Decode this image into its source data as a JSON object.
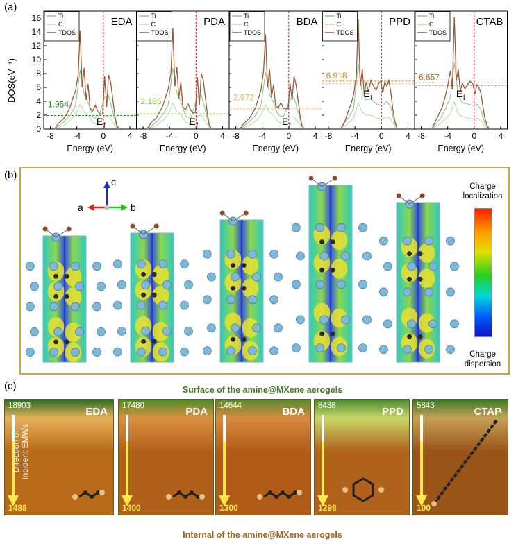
{
  "panel_labels": {
    "a": "(a)",
    "b": "(b)",
    "c": "(c)"
  },
  "colors": {
    "ti": "#8cc896",
    "c": "#b8dca8",
    "tdos": "#9a5c38",
    "fermi": "#e02020"
  },
  "chart_data": [
    {
      "type": "line",
      "title": "EDA",
      "xlabel": "Energy (eV)",
      "ylabel": "DOS(eV⁻¹)",
      "xlim": [
        -9,
        5
      ],
      "ylim": [
        0,
        17
      ],
      "xticks": [
        -8,
        -4,
        0,
        4
      ],
      "yticks": [
        0,
        2,
        4,
        6,
        8,
        10,
        12,
        14,
        16
      ],
      "legend": [
        "Ti",
        "C",
        "TDOS"
      ],
      "legend_position": "top-left",
      "fermi_label": "E",
      "fermi_sub": "f",
      "annotation": "1.954",
      "annotation_value": 1.954,
      "annotation_color": "#2c8a2c",
      "series": [
        {
          "name": "TDOS",
          "x": [
            -7.4,
            -6.8,
            -6.0,
            -5.4,
            -5.0,
            -4.6,
            -4.2,
            -3.8,
            -3.5,
            -3.2,
            -2.9,
            -2.6,
            -2.3,
            -2.0,
            -1.6,
            -1.2,
            -0.8,
            -0.4,
            -0.1,
            0.2,
            0.5,
            0.8,
            1.1,
            1.4,
            1.7,
            2.0,
            2.4
          ],
          "y": [
            0,
            0.8,
            1.5,
            2.4,
            3.2,
            4.5,
            5.5,
            7.8,
            14.2,
            6.0,
            8.8,
            4.2,
            6.5,
            3.0,
            2.6,
            3.4,
            2.5,
            2.1,
            2.2,
            7.6,
            3.2,
            7.8,
            6.8,
            4.5,
            2.2,
            0.6,
            0
          ]
        },
        {
          "name": "Ti",
          "x": [
            -7.4,
            -6.0,
            -5.0,
            -4.2,
            -3.5,
            -2.9,
            -2.3,
            -1.6,
            -0.8,
            0.2,
            0.8,
            1.4,
            2.0,
            2.4
          ],
          "y": [
            0,
            1.0,
            2.0,
            3.4,
            8.5,
            5.0,
            3.8,
            1.8,
            1.4,
            4.6,
            4.8,
            2.6,
            0.4,
            0
          ]
        },
        {
          "name": "C",
          "x": [
            -7.4,
            -6.0,
            -5.0,
            -4.2,
            -3.5,
            -2.9,
            -2.3,
            -1.6,
            -0.8,
            0.2,
            0.8,
            1.4,
            2.0,
            2.4
          ],
          "y": [
            0,
            0.5,
            1.2,
            2.0,
            3.6,
            2.4,
            2.0,
            0.9,
            0.6,
            1.8,
            1.9,
            1.0,
            0.2,
            0
          ]
        }
      ]
    },
    {
      "type": "line",
      "title": "PDA",
      "xlabel": "Energy (eV)",
      "xlim": [
        -9,
        5
      ],
      "ylim": [
        0,
        17
      ],
      "xticks": [
        -8,
        -4,
        0,
        4
      ],
      "legend": [
        "Ti",
        "C",
        "TDOS"
      ],
      "legend_position": "top-left",
      "fermi_label": "E",
      "fermi_sub": "f",
      "annotation": "2.185",
      "annotation_value": 2.185,
      "annotation_color": "#7fc840",
      "series": [
        {
          "name": "TDOS",
          "x": [
            -7.4,
            -6.8,
            -6.0,
            -5.4,
            -5.0,
            -4.6,
            -4.2,
            -3.8,
            -3.5,
            -3.2,
            -2.9,
            -2.6,
            -2.3,
            -2.0,
            -1.6,
            -1.2,
            -0.8,
            -0.4,
            -0.1,
            0.2,
            0.5,
            0.8,
            1.1,
            1.4,
            1.7,
            2.0,
            2.4
          ],
          "y": [
            0,
            0.9,
            1.6,
            2.6,
            3.4,
            4.6,
            5.8,
            8.0,
            14.6,
            6.2,
            9.0,
            4.4,
            6.8,
            3.2,
            2.8,
            3.6,
            2.7,
            2.3,
            2.4,
            7.5,
            3.4,
            8.0,
            7.0,
            4.6,
            2.3,
            0.6,
            0
          ]
        },
        {
          "name": "Ti",
          "x": [
            -7.4,
            -6.0,
            -5.0,
            -4.2,
            -3.5,
            -2.9,
            -2.3,
            -1.6,
            -0.8,
            0.2,
            0.8,
            1.4,
            2.0,
            2.4
          ],
          "y": [
            0,
            1.0,
            2.1,
            3.5,
            8.8,
            5.2,
            4.0,
            1.9,
            1.5,
            4.7,
            4.9,
            2.7,
            0.4,
            0
          ]
        },
        {
          "name": "C",
          "x": [
            -7.4,
            -6.0,
            -5.0,
            -4.2,
            -3.5,
            -2.9,
            -2.3,
            -1.6,
            -0.8,
            0.2,
            0.8,
            1.4,
            2.0,
            2.4
          ],
          "y": [
            0,
            0.5,
            1.2,
            2.1,
            3.7,
            2.5,
            2.1,
            1.0,
            0.6,
            1.9,
            2.0,
            1.1,
            0.2,
            0
          ]
        }
      ]
    },
    {
      "type": "line",
      "title": "BDA",
      "xlabel": "Energy (eV)",
      "xlim": [
        -9,
        5
      ],
      "ylim": [
        0,
        17
      ],
      "xticks": [
        -8,
        -4,
        0,
        4
      ],
      "legend": [
        "Ti",
        "C",
        "TDOS"
      ],
      "legend_position": "top-left",
      "fermi_label": "E",
      "fermi_sub": "f",
      "annotation": "2.972",
      "annotation_value": 2.972,
      "annotation_color": "#f0b060",
      "series": [
        {
          "name": "TDOS",
          "x": [
            -7.4,
            -6.8,
            -6.0,
            -5.4,
            -5.0,
            -4.6,
            -4.2,
            -3.8,
            -3.5,
            -3.2,
            -2.9,
            -2.6,
            -2.3,
            -2.0,
            -1.6,
            -1.2,
            -0.8,
            -0.4,
            -0.1,
            0.2,
            0.5,
            0.8,
            1.1,
            1.4,
            1.7,
            2.0,
            2.4
          ],
          "y": [
            0,
            0.8,
            1.5,
            2.4,
            3.1,
            4.4,
            5.6,
            8.4,
            13.6,
            6.0,
            8.6,
            4.6,
            6.4,
            3.4,
            3.0,
            3.8,
            3.0,
            2.9,
            3.0,
            6.6,
            4.2,
            7.6,
            6.4,
            4.2,
            2.0,
            0.5,
            0
          ]
        },
        {
          "name": "Ti",
          "x": [
            -7.4,
            -6.0,
            -5.0,
            -4.2,
            -3.5,
            -2.9,
            -2.3,
            -1.6,
            -0.8,
            0.2,
            0.8,
            1.4,
            2.0,
            2.4
          ],
          "y": [
            0,
            1.0,
            2.0,
            3.4,
            8.2,
            5.0,
            3.8,
            2.0,
            1.8,
            4.2,
            4.6,
            2.5,
            0.4,
            0
          ]
        },
        {
          "name": "C",
          "x": [
            -7.4,
            -6.0,
            -5.0,
            -4.2,
            -3.5,
            -2.9,
            -2.3,
            -1.6,
            -0.8,
            0.2,
            0.8,
            1.4,
            2.0,
            2.4
          ],
          "y": [
            0,
            0.5,
            1.1,
            2.0,
            3.5,
            2.4,
            2.0,
            1.0,
            0.8,
            1.7,
            1.8,
            1.0,
            0.2,
            0
          ]
        }
      ]
    },
    {
      "type": "line",
      "title": "PPD",
      "xlabel": "Energy (eV)",
      "xlim": [
        -9,
        5
      ],
      "ylim": [
        0,
        17
      ],
      "xticks": [
        -8,
        -4,
        0,
        4
      ],
      "legend": [
        "Ti",
        "C",
        "TDOS"
      ],
      "legend_position": "top-left",
      "fermi_label": "E",
      "fermi_sub": "f",
      "annotation": "6.918",
      "annotation_value": 6.918,
      "annotation_color": "#c88a28",
      "series": [
        {
          "name": "TDOS",
          "x": [
            -6.2,
            -5.8,
            -5.4,
            -5.0,
            -4.6,
            -4.2,
            -3.8,
            -3.5,
            -3.2,
            -2.9,
            -2.6,
            -2.3,
            -2.0,
            -1.6,
            -1.2,
            -0.8,
            -0.4,
            -0.1,
            0.2,
            0.5,
            0.8,
            1.1,
            1.4,
            1.7,
            2.0,
            2.4
          ],
          "y": [
            0,
            0.6,
            1.4,
            2.6,
            3.6,
            5.0,
            7.6,
            15.8,
            6.2,
            8.6,
            5.0,
            6.8,
            5.4,
            7.0,
            6.2,
            5.6,
            6.6,
            6.9,
            5.2,
            6.8,
            6.2,
            7.0,
            5.4,
            3.0,
            1.2,
            0
          ]
        },
        {
          "name": "Ti",
          "x": [
            -6.2,
            -5.0,
            -4.2,
            -3.5,
            -2.9,
            -2.3,
            -1.6,
            -0.8,
            0.2,
            0.8,
            1.4,
            2.0,
            2.4
          ],
          "y": [
            0,
            1.6,
            3.0,
            9.4,
            5.2,
            4.2,
            4.4,
            3.6,
            3.4,
            4.0,
            3.2,
            0.8,
            0
          ]
        },
        {
          "name": "C",
          "x": [
            -6.2,
            -5.0,
            -4.2,
            -3.5,
            -2.9,
            -2.3,
            -1.6,
            -0.8,
            0.2,
            0.8,
            1.4,
            2.0,
            2.4
          ],
          "y": [
            0,
            0.8,
            1.6,
            3.8,
            2.4,
            2.0,
            2.0,
            1.6,
            1.5,
            1.8,
            1.4,
            0.4,
            0
          ]
        }
      ]
    },
    {
      "type": "line",
      "title": "CTAB",
      "xlabel": "Energy (eV)",
      "xlim": [
        -9,
        5
      ],
      "ylim": [
        0,
        17
      ],
      "xticks": [
        -8,
        -4,
        0,
        4
      ],
      "legend": [
        "Ti",
        "C",
        "TDOS"
      ],
      "legend_position": "top-left",
      "fermi_label": "E",
      "fermi_sub": "f",
      "annotation": "6.657",
      "annotation_value": 6.657,
      "annotation_color": "#a86a2a",
      "series": [
        {
          "name": "TDOS",
          "x": [
            -6.4,
            -6.0,
            -5.6,
            -5.2,
            -4.8,
            -4.4,
            -4.0,
            -3.6,
            -3.3,
            -3.0,
            -2.7,
            -2.4,
            -2.1,
            -1.8,
            -1.4,
            -1.0,
            -0.6,
            -0.2,
            0.1,
            0.4,
            0.7,
            1.0,
            1.3,
            1.6,
            2.0,
            2.4
          ],
          "y": [
            0,
            0.8,
            1.6,
            2.4,
            3.2,
            4.6,
            6.2,
            8.4,
            5.8,
            16.2,
            7.0,
            8.6,
            5.4,
            6.6,
            5.8,
            6.4,
            6.9,
            6.5,
            5.0,
            6.4,
            6.0,
            5.2,
            3.4,
            1.6,
            0.4,
            0
          ]
        },
        {
          "name": "Ti",
          "x": [
            -6.4,
            -5.2,
            -4.4,
            -3.6,
            -3.0,
            -2.4,
            -1.8,
            -1.0,
            -0.2,
            0.4,
            1.0,
            1.6,
            2.4
          ],
          "y": [
            0,
            1.4,
            2.8,
            4.6,
            9.6,
            4.8,
            3.8,
            3.6,
            3.4,
            3.6,
            2.8,
            0.8,
            0
          ]
        },
        {
          "name": "C",
          "x": [
            -6.4,
            -5.2,
            -4.4,
            -3.6,
            -3.0,
            -2.4,
            -1.8,
            -1.0,
            -0.2,
            0.4,
            1.0,
            1.6,
            2.4
          ],
          "y": [
            0,
            0.7,
            1.4,
            2.2,
            3.9,
            2.2,
            1.8,
            1.6,
            1.5,
            1.6,
            1.2,
            0.4,
            0
          ]
        }
      ]
    }
  ],
  "structure": {
    "axes": {
      "a": "a",
      "b": "b",
      "c": "c"
    },
    "colorbar_top": "Charge localization",
    "colorbar_bottom": "Charge dispersion"
  },
  "emw": {
    "surface_caption": "Surface of the amine@MXene aerogels",
    "internal_caption": "Internal of the amine@MXene aerogels",
    "arrow_label": "Direction of incident EMWs",
    "panels": [
      {
        "name": "EDA",
        "top": "18903",
        "bottom": "1488",
        "grad_top": "#2e6a22",
        "grad_mid": "#e8b25a",
        "grad_bot": "#b86a18"
      },
      {
        "name": "PDA",
        "top": "17480",
        "bottom": "1400",
        "grad_top": "#4e8a2a",
        "grad_mid": "#dc9040",
        "grad_bot": "#b0601a"
      },
      {
        "name": "BDA",
        "top": "14644",
        "bottom": "1300",
        "grad_top": "#5a8a30",
        "grad_mid": "#d88a3e",
        "grad_bot": "#b05c18"
      },
      {
        "name": "PPD",
        "top": "8438",
        "bottom": "1298",
        "grad_top": "#4c8a30",
        "grad_mid": "#c8d868",
        "grad_bot": "#b0621c"
      },
      {
        "name": "CTAB",
        "top": "5843",
        "bottom": "100",
        "grad_top": "#3a7a26",
        "grad_mid": "#c8a058",
        "grad_bot": "#9a5418"
      }
    ]
  }
}
